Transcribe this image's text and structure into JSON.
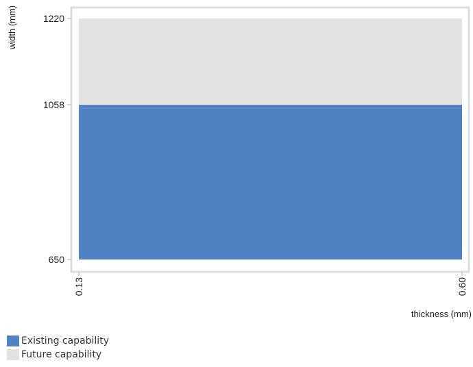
{
  "chart_data": {
    "type": "area",
    "title": "",
    "xlabel": "thickness (mm)",
    "ylabel": "width (mm)",
    "x_ticks": [
      "0.13",
      "0.60"
    ],
    "y_ticks": [
      "650",
      "1058",
      "1220"
    ],
    "xlim": [
      0.13,
      0.6
    ],
    "y_ticks_values": [
      650,
      1058,
      1220
    ],
    "grid": false,
    "legend_position": "bottom-left",
    "series": [
      {
        "name": "Existing capability",
        "x": [
          0.13,
          0.6
        ],
        "y_range": [
          650,
          1058
        ],
        "color": "#5082C4"
      },
      {
        "name": "Future capability",
        "x": [
          0.13,
          0.6
        ],
        "y_range": [
          1058,
          1220
        ],
        "color": "#E2E2E2"
      }
    ]
  },
  "colors": {
    "frame": "#DCDCDC",
    "axis": "#B4B4B4",
    "text": "#222222"
  }
}
